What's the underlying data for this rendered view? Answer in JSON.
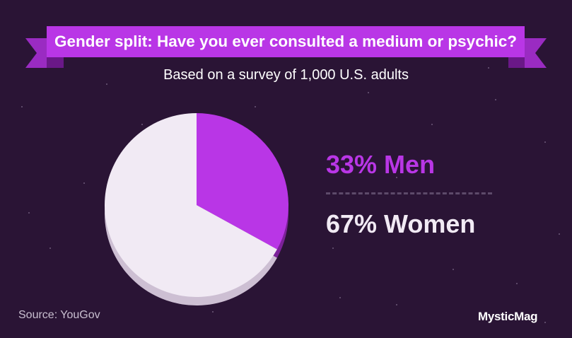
{
  "title": "Gender split: Have you ever consulted a medium or psychic?",
  "subtitle": "Based on a survey of 1,000 U.S. adults",
  "source": "Source: YouGov",
  "brand": "MysticMag",
  "colors": {
    "background": "#2a1435",
    "ribbon": "#b936e6",
    "ribbon_dark": "#7a1f9a",
    "men": "#b936e6",
    "men_shadow": "#7c2199",
    "women": "#f1eaf4",
    "women_shadow": "#cdbfd3"
  },
  "legend": {
    "men_label": "33% Men",
    "women_label": "67% Women"
  },
  "chart_data": {
    "type": "pie",
    "title": "Gender split: Have you ever consulted a medium or psychic?",
    "subtitle": "Based on a survey of 1,000 U.S. adults",
    "slices": [
      {
        "label": "Men",
        "value": 33,
        "color": "#b936e6"
      },
      {
        "label": "Women",
        "value": 67,
        "color": "#f1eaf4"
      }
    ]
  }
}
